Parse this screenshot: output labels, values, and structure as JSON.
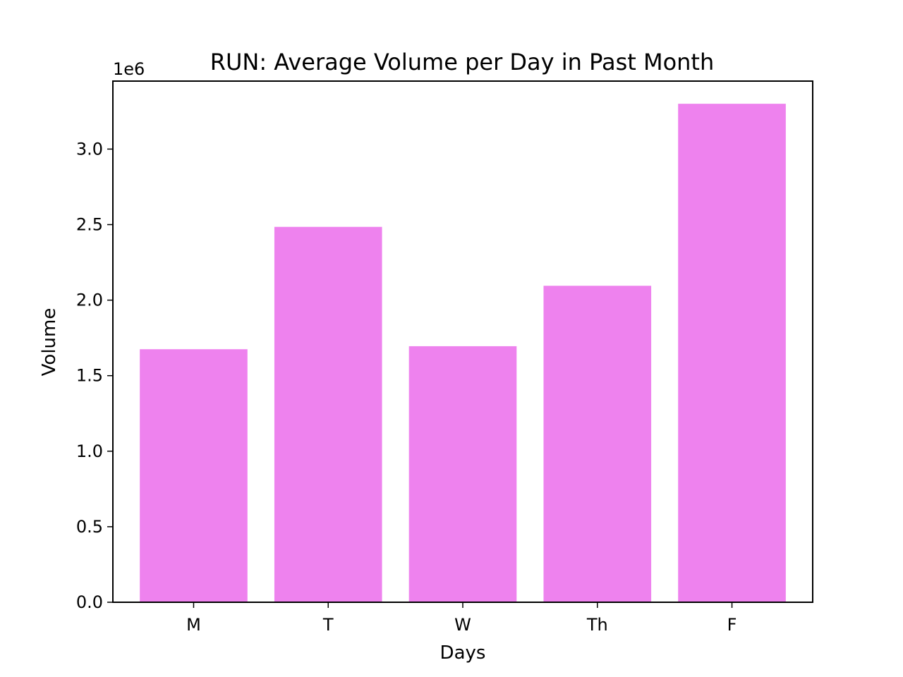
{
  "chart_data": {
    "type": "bar",
    "title": "RUN: Average Volume per Day in Past Month",
    "xlabel": "Days",
    "ylabel": "Volume",
    "y_offset_label": "1e6",
    "categories": [
      "M",
      "T",
      "W",
      "Th",
      "F"
    ],
    "values": [
      1675000,
      2485000,
      1695000,
      2095000,
      3300000
    ],
    "ylim": [
      0,
      3450000
    ],
    "yticks": [
      0,
      500000,
      1000000,
      1500000,
      2000000,
      2500000,
      3000000
    ],
    "ytick_labels": [
      "0.0",
      "0.5",
      "1.0",
      "1.5",
      "2.0",
      "2.5",
      "3.0"
    ],
    "bar_color": "#ee82ee",
    "grid": false,
    "legend": "none"
  }
}
